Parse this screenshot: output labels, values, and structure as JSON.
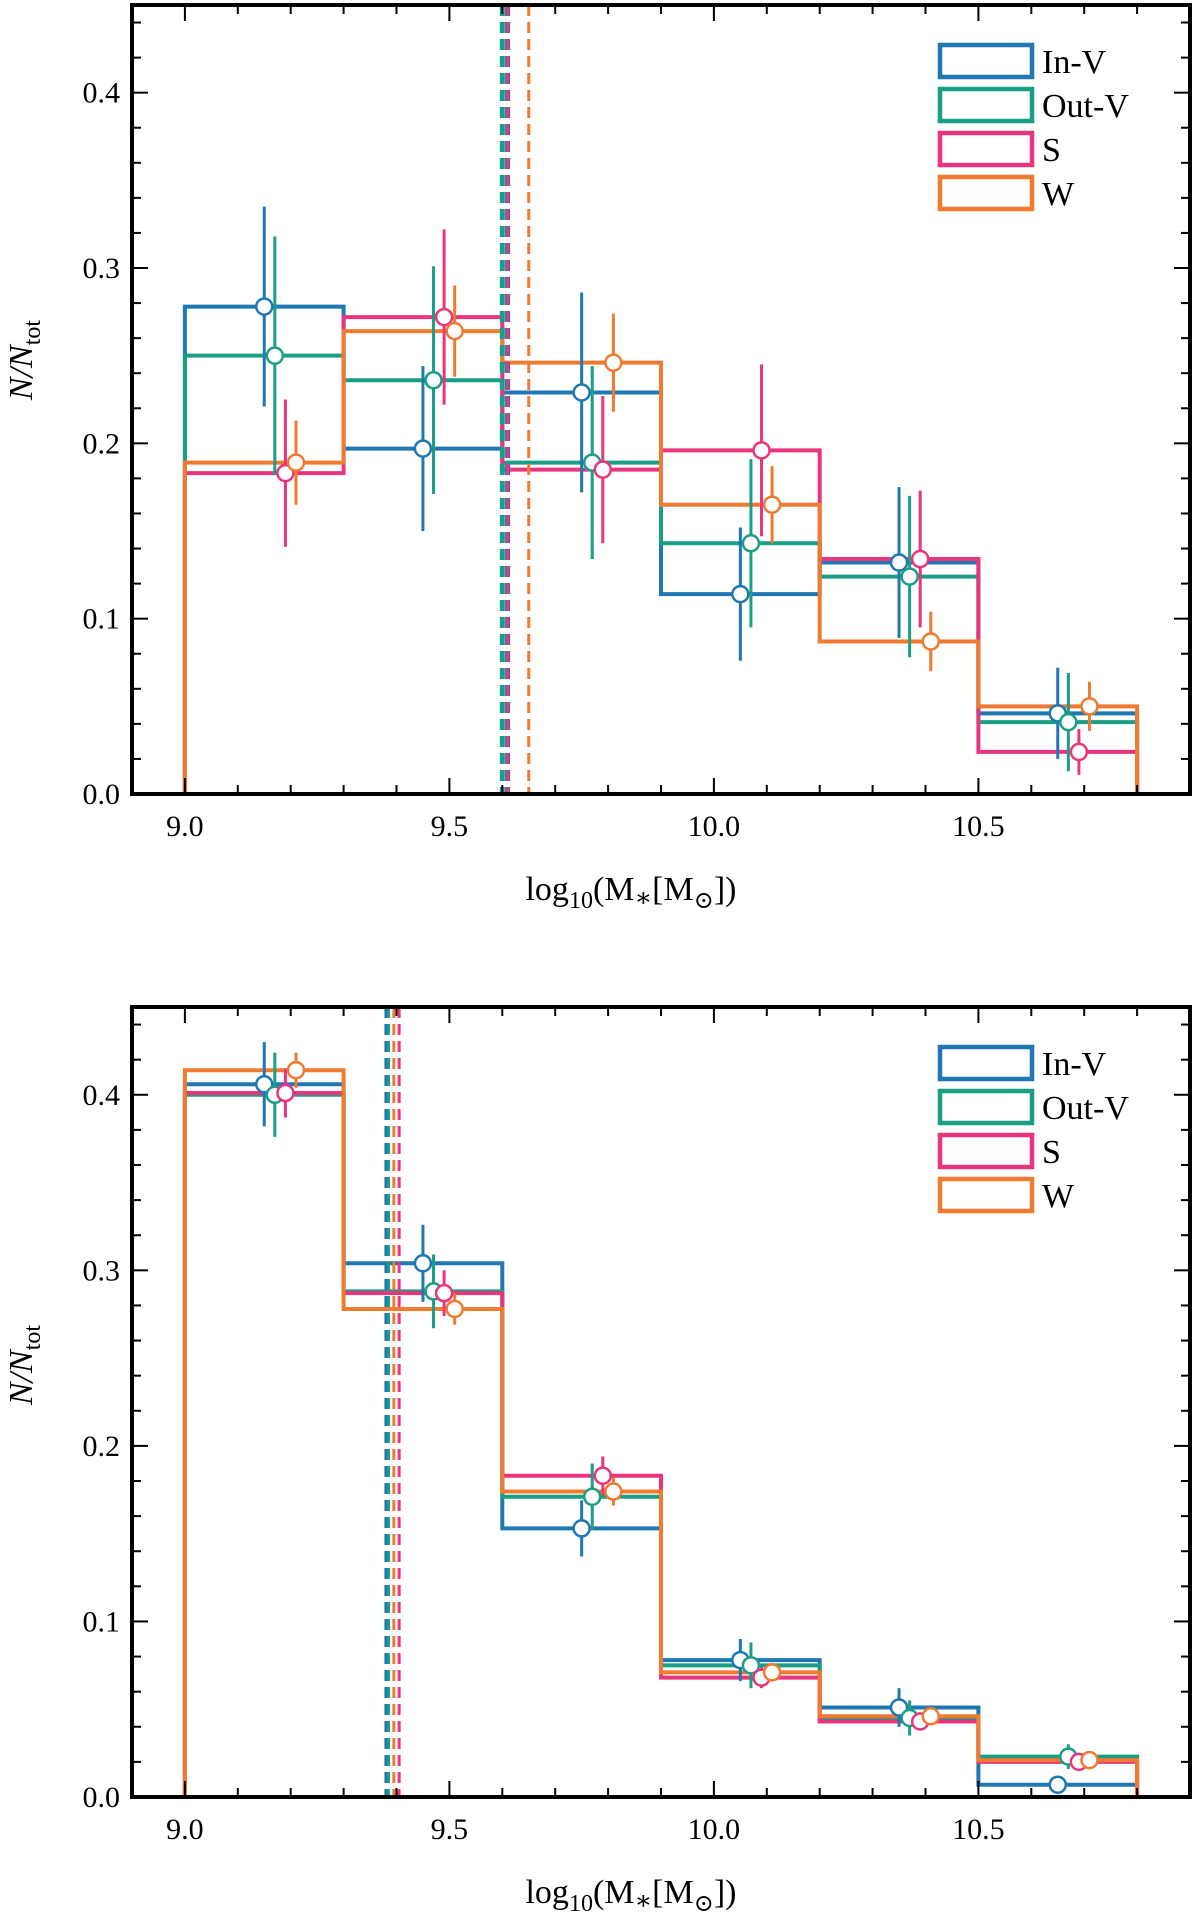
{
  "chart_data": [
    {
      "type": "histogram",
      "panel": "top",
      "xlabel": "log10(M*[M⊙])",
      "ylabel": "N/Ntot",
      "xlim": [
        8.9,
        10.9
      ],
      "ylim": [
        0.0,
        0.45
      ],
      "xticks": [
        9.0,
        9.5,
        10.0,
        10.5
      ],
      "xtick_labels": [
        "9.0",
        "9.5",
        "10.0",
        "10.5"
      ],
      "yticks": [
        0.0,
        0.1,
        0.2,
        0.3,
        0.4
      ],
      "ytick_labels": [
        "0.0",
        "0.1",
        "0.2",
        "0.3",
        "0.4"
      ],
      "bin_edges": [
        9.0,
        9.3,
        9.6,
        9.9,
        10.2,
        10.5,
        10.8
      ],
      "legend_position": "top-right",
      "series": [
        {
          "name": "In-V",
          "color": "#1f77b4",
          "values": [
            0.278,
            0.197,
            0.229,
            0.114,
            0.132,
            0.046
          ],
          "points": [
            {
              "x": 9.15,
              "y": 0.278,
              "err": 0.057
            },
            {
              "x": 9.45,
              "y": 0.197,
              "err": 0.047
            },
            {
              "x": 9.75,
              "y": 0.229,
              "err": 0.057
            },
            {
              "x": 10.05,
              "y": 0.114,
              "err": 0.038
            },
            {
              "x": 10.35,
              "y": 0.132,
              "err": 0.043
            },
            {
              "x": 10.65,
              "y": 0.046,
              "err": 0.026
            }
          ],
          "median": 9.61,
          "median_linewidth": 5
        },
        {
          "name": "Out-V",
          "color": "#1a9e85",
          "values": [
            0.25,
            0.236,
            0.189,
            0.143,
            0.124,
            0.041
          ],
          "points": [
            {
              "x": 9.17,
              "y": 0.25,
              "err": 0.068
            },
            {
              "x": 9.47,
              "y": 0.236,
              "err": 0.065
            },
            {
              "x": 9.77,
              "y": 0.189,
              "err": 0.055
            },
            {
              "x": 10.07,
              "y": 0.143,
              "err": 0.048
            },
            {
              "x": 10.37,
              "y": 0.124,
              "err": 0.046
            },
            {
              "x": 10.67,
              "y": 0.041,
              "err": 0.028
            }
          ],
          "median": 9.6,
          "median_linewidth": 5
        },
        {
          "name": "S",
          "color": "#e8357e",
          "values": [
            0.183,
            0.272,
            0.185,
            0.196,
            0.134,
            0.024
          ],
          "points": [
            {
              "x": 9.19,
              "y": 0.183,
              "err": 0.042
            },
            {
              "x": 9.49,
              "y": 0.272,
              "err": 0.05
            },
            {
              "x": 9.79,
              "y": 0.185,
              "err": 0.042
            },
            {
              "x": 10.09,
              "y": 0.196,
              "err": 0.049
            },
            {
              "x": 10.39,
              "y": 0.134,
              "err": 0.039
            },
            {
              "x": 10.69,
              "y": 0.024,
              "err": 0.013
            }
          ],
          "median": 9.61,
          "median_linewidth": 3
        },
        {
          "name": "W",
          "color": "#f07a30",
          "values": [
            0.189,
            0.264,
            0.246,
            0.165,
            0.087,
            0.05
          ],
          "points": [
            {
              "x": 9.21,
              "y": 0.189,
              "err": 0.024
            },
            {
              "x": 9.51,
              "y": 0.264,
              "err": 0.026
            },
            {
              "x": 9.81,
              "y": 0.246,
              "err": 0.028
            },
            {
              "x": 10.11,
              "y": 0.165,
              "err": 0.022
            },
            {
              "x": 10.41,
              "y": 0.087,
              "err": 0.017
            },
            {
              "x": 10.71,
              "y": 0.05,
              "err": 0.014
            }
          ],
          "median": 9.65,
          "median_linewidth": 3
        }
      ]
    },
    {
      "type": "histogram",
      "panel": "bottom",
      "xlabel": "log10(M*[M⊙])",
      "ylabel": "N/Ntot",
      "xlim": [
        8.9,
        10.9
      ],
      "ylim": [
        0.0,
        0.45
      ],
      "xticks": [
        9.0,
        9.5,
        10.0,
        10.5
      ],
      "xtick_labels": [
        "9.0",
        "9.5",
        "10.0",
        "10.5"
      ],
      "yticks": [
        0.0,
        0.1,
        0.2,
        0.3,
        0.4
      ],
      "ytick_labels": [
        "0.0",
        "0.1",
        "0.2",
        "0.3",
        "0.4"
      ],
      "bin_edges": [
        9.0,
        9.3,
        9.6,
        9.9,
        10.2,
        10.5,
        10.8
      ],
      "legend_position": "top-right",
      "series": [
        {
          "name": "In-V",
          "color": "#1f77b4",
          "values": [
            0.406,
            0.304,
            0.153,
            0.078,
            0.051,
            0.007
          ],
          "points": [
            {
              "x": 9.15,
              "y": 0.406,
              "err": 0.024
            },
            {
              "x": 9.45,
              "y": 0.304,
              "err": 0.022
            },
            {
              "x": 9.75,
              "y": 0.153,
              "err": 0.016
            },
            {
              "x": 10.05,
              "y": 0.078,
              "err": 0.012
            },
            {
              "x": 10.35,
              "y": 0.051,
              "err": 0.011
            },
            {
              "x": 10.65,
              "y": 0.007,
              "err": 0.004
            }
          ],
          "median": 9.38,
          "median_linewidth": 3
        },
        {
          "name": "Out-V",
          "color": "#1a9e85",
          "values": [
            0.4,
            0.288,
            0.171,
            0.075,
            0.045,
            0.023
          ],
          "points": [
            {
              "x": 9.17,
              "y": 0.4,
              "err": 0.024
            },
            {
              "x": 9.47,
              "y": 0.288,
              "err": 0.021
            },
            {
              "x": 9.77,
              "y": 0.171,
              "err": 0.019
            },
            {
              "x": 10.07,
              "y": 0.075,
              "err": 0.013
            },
            {
              "x": 10.37,
              "y": 0.045,
              "err": 0.01
            },
            {
              "x": 10.67,
              "y": 0.023,
              "err": 0.007
            }
          ],
          "median": 9.385,
          "median_linewidth": 3
        },
        {
          "name": "S",
          "color": "#e8357e",
          "values": [
            0.401,
            0.287,
            0.183,
            0.068,
            0.043,
            0.02
          ],
          "points": [
            {
              "x": 9.19,
              "y": 0.401,
              "err": 0.014
            },
            {
              "x": 9.49,
              "y": 0.287,
              "err": 0.013
            },
            {
              "x": 9.79,
              "y": 0.183,
              "err": 0.011
            },
            {
              "x": 10.09,
              "y": 0.068,
              "err": 0.006
            },
            {
              "x": 10.39,
              "y": 0.043,
              "err": 0.005
            },
            {
              "x": 10.69,
              "y": 0.02,
              "err": 0.004
            }
          ],
          "median": 9.405,
          "median_linewidth": 3
        },
        {
          "name": "W",
          "color": "#f07a30",
          "values": [
            0.414,
            0.278,
            0.174,
            0.071,
            0.046,
            0.021
          ],
          "points": [
            {
              "x": 9.21,
              "y": 0.414,
              "err": 0.01
            },
            {
              "x": 9.51,
              "y": 0.278,
              "err": 0.009
            },
            {
              "x": 9.81,
              "y": 0.174,
              "err": 0.008
            },
            {
              "x": 10.11,
              "y": 0.071,
              "err": 0.005
            },
            {
              "x": 10.41,
              "y": 0.046,
              "err": 0.004
            },
            {
              "x": 10.71,
              "y": 0.021,
              "err": 0.003
            }
          ],
          "median": 9.395,
          "median_linewidth": 3
        }
      ]
    }
  ]
}
